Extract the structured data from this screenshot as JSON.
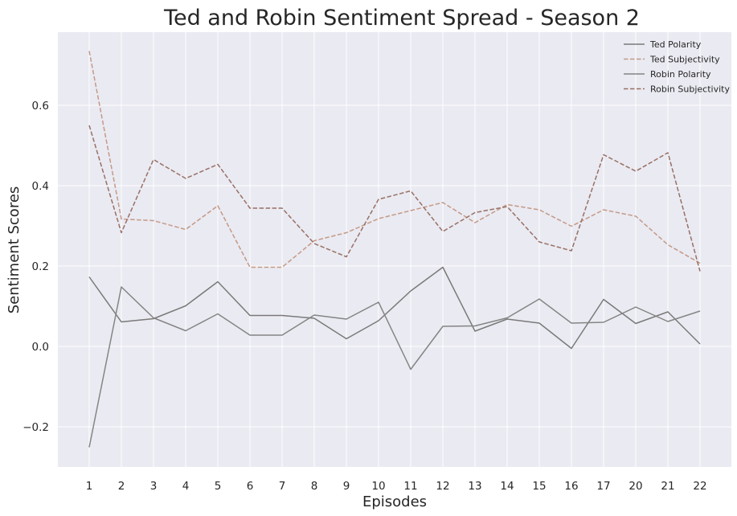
{
  "chart_data": {
    "type": "line",
    "title": "Ted and Robin Sentiment Spread - Season 2",
    "xlabel": "Episodes",
    "ylabel": "Sentiment Scores",
    "categories": [
      "1",
      "2",
      "3",
      "4",
      "5",
      "6",
      "7",
      "8",
      "9",
      "10",
      "11",
      "12",
      "13",
      "14",
      "15",
      "16",
      "17",
      "20",
      "21",
      "22"
    ],
    "yticks": [
      -0.2,
      0.0,
      0.2,
      0.4,
      0.6
    ],
    "ytick_labels": [
      "−0.2",
      "0.0",
      "0.2",
      "0.4",
      "0.6"
    ],
    "ylim": [
      -0.3,
      0.79
    ],
    "grid": true,
    "legend_position": "top-right",
    "background": "#eaeaf2",
    "series": [
      {
        "name": "Ted Polarity",
        "style": "solid",
        "color": "#7a7a7a",
        "values": [
          0.173,
          0.061,
          0.069,
          0.101,
          0.161,
          0.077,
          0.077,
          0.07,
          0.019,
          0.064,
          0.138,
          0.197,
          0.038,
          0.068,
          0.058,
          -0.005,
          0.117,
          0.057,
          0.086,
          0.006
        ]
      },
      {
        "name": "Ted Subjectivity",
        "style": "dashed",
        "color": "#c49a86",
        "values": [
          0.735,
          0.317,
          0.313,
          0.291,
          0.35,
          0.197,
          0.197,
          0.263,
          0.283,
          0.318,
          0.338,
          0.358,
          0.308,
          0.353,
          0.34,
          0.299,
          0.34,
          0.324,
          0.253,
          0.207
        ]
      },
      {
        "name": "Robin Polarity",
        "style": "solid",
        "color": "#858585",
        "values": [
          -0.251,
          0.148,
          0.071,
          0.039,
          0.081,
          0.028,
          0.028,
          0.078,
          0.068,
          0.11,
          -0.057,
          0.05,
          0.051,
          0.071,
          0.118,
          0.058,
          0.06,
          0.098,
          0.062,
          0.088
        ]
      },
      {
        "name": "Robin Subjectivity",
        "style": "dashed",
        "color": "#987065",
        "values": [
          0.55,
          0.283,
          0.465,
          0.418,
          0.453,
          0.344,
          0.344,
          0.256,
          0.223,
          0.366,
          0.387,
          0.286,
          0.333,
          0.348,
          0.26,
          0.238,
          0.477,
          0.436,
          0.482,
          0.187
        ]
      }
    ]
  }
}
